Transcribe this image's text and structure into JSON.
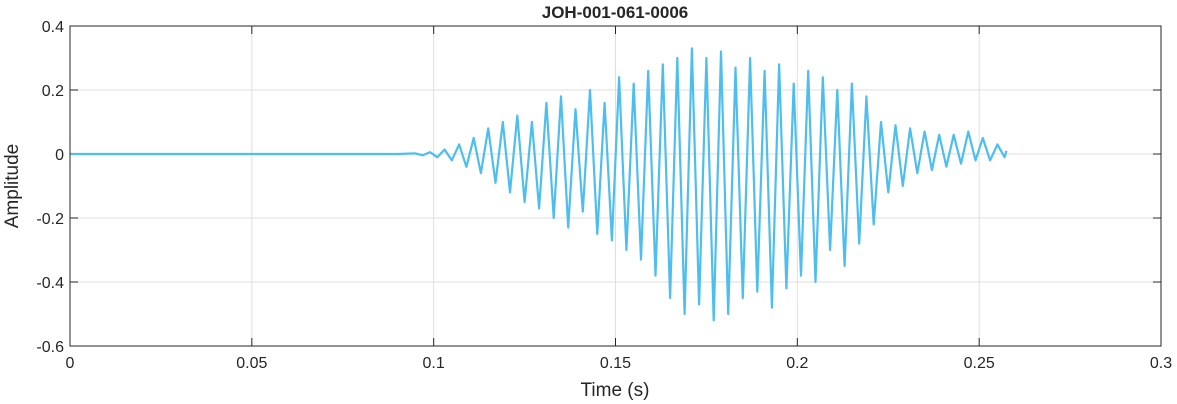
{
  "chart_data": {
    "type": "line",
    "title": "JOH-001-061-0006",
    "xlabel": "Time (s)",
    "ylabel": "Amplitude",
    "xlim": [
      0,
      0.3
    ],
    "ylim": [
      -0.6,
      0.4
    ],
    "x_ticks": [
      0,
      0.05,
      0.1,
      0.15,
      0.2,
      0.25,
      0.3
    ],
    "x_tick_labels": [
      "0",
      "0.05",
      "0.1",
      "0.15",
      "0.2",
      "0.25",
      "0.3"
    ],
    "y_ticks": [
      -0.6,
      -0.4,
      -0.2,
      0,
      0.2,
      0.4
    ],
    "y_tick_labels": [
      "-0.6",
      "-0.4",
      "-0.2",
      "0",
      "0.2",
      "0.4"
    ],
    "grid": true,
    "line_color": "#4DBEEE",
    "series": [
      {
        "sampling": "decimated waveform estimate",
        "x": [
          0,
          0.05,
          0.09,
          0.095,
          0.097,
          0.099,
          0.101,
          0.103,
          0.105,
          0.107,
          0.109,
          0.111,
          0.113,
          0.115,
          0.117,
          0.119,
          0.121,
          0.123,
          0.125,
          0.127,
          0.129,
          0.131,
          0.133,
          0.135,
          0.137,
          0.139,
          0.141,
          0.143,
          0.145,
          0.147,
          0.149,
          0.151,
          0.153,
          0.155,
          0.157,
          0.159,
          0.161,
          0.163,
          0.165,
          0.167,
          0.169,
          0.171,
          0.173,
          0.175,
          0.177,
          0.179,
          0.181,
          0.183,
          0.185,
          0.187,
          0.189,
          0.191,
          0.193,
          0.195,
          0.197,
          0.199,
          0.201,
          0.203,
          0.205,
          0.207,
          0.209,
          0.211,
          0.213,
          0.215,
          0.217,
          0.219,
          0.221,
          0.223,
          0.225,
          0.227,
          0.229,
          0.231,
          0.233,
          0.235,
          0.237,
          0.239,
          0.241,
          0.243,
          0.245,
          0.247,
          0.249,
          0.251,
          0.253,
          0.255,
          0.257,
          0.2575
        ],
        "y": [
          0,
          0,
          0,
          0.002,
          -0.004,
          0.006,
          -0.01,
          0.014,
          -0.02,
          0.03,
          -0.04,
          0.05,
          -0.06,
          0.08,
          -0.09,
          0.1,
          -0.12,
          0.12,
          -0.15,
          0.1,
          -0.17,
          0.16,
          -0.2,
          0.18,
          -0.23,
          0.14,
          -0.18,
          0.2,
          -0.25,
          0.16,
          -0.27,
          0.24,
          -0.3,
          0.22,
          -0.33,
          0.26,
          -0.38,
          0.28,
          -0.45,
          0.3,
          -0.5,
          0.33,
          -0.47,
          0.3,
          -0.52,
          0.32,
          -0.5,
          0.27,
          -0.45,
          0.3,
          -0.43,
          0.26,
          -0.48,
          0.28,
          -0.42,
          0.22,
          -0.38,
          0.26,
          -0.4,
          0.24,
          -0.3,
          0.2,
          -0.35,
          0.22,
          -0.28,
          0.18,
          -0.22,
          0.1,
          -0.12,
          0.09,
          -0.1,
          0.08,
          -0.06,
          0.07,
          -0.05,
          0.06,
          -0.04,
          0.06,
          -0.03,
          0.07,
          -0.02,
          0.05,
          -0.02,
          0.03,
          -0.01,
          0.01
        ]
      }
    ]
  }
}
